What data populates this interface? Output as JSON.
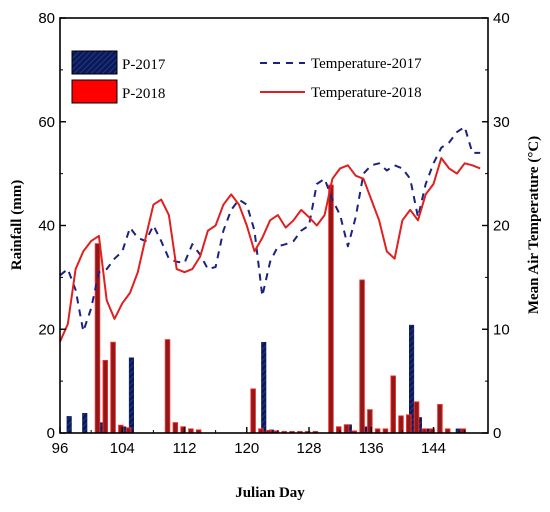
{
  "chart_data": {
    "type": "bar+line",
    "xlabel": "Julian Day",
    "ylabel_left": "Rainfall (mm)",
    "ylabel_right": "Mean Air Temperature (°C)",
    "xlim": [
      96,
      151
    ],
    "ylim_left": [
      0,
      80
    ],
    "ylim_right": [
      0,
      40
    ],
    "x_ticks": [
      96,
      104,
      112,
      120,
      128,
      136,
      144
    ],
    "y_left_ticks": [
      0,
      20,
      40,
      60,
      80
    ],
    "y_right_ticks": [
      0,
      10,
      20,
      30,
      40
    ],
    "legend": {
      "p2017": "P-2017",
      "p2018": "P-2018",
      "t2017": "Temperature-2017",
      "t2018": "Temperature-2018"
    },
    "colors": {
      "p2017_fill": "#0b1a55",
      "p2017_hatch": "#2a3f9f",
      "p2018_fill": "#8b1a1a",
      "p2018_border": "#ff2a2a",
      "t2017": "#1a237e",
      "t2018": "#e02020"
    },
    "bars": {
      "p2017": [
        {
          "x": 97,
          "y": 3.2
        },
        {
          "x": 99,
          "y": 3.8
        },
        {
          "x": 101,
          "y": 2.0
        },
        {
          "x": 104,
          "y": 1.2
        },
        {
          "x": 105,
          "y": 14.5
        },
        {
          "x": 122,
          "y": 17.5
        },
        {
          "x": 123,
          "y": 0.6
        },
        {
          "x": 133,
          "y": 1.6
        },
        {
          "x": 135,
          "y": 1.2
        },
        {
          "x": 141,
          "y": 20.8
        },
        {
          "x": 142,
          "y": 3.0
        },
        {
          "x": 143,
          "y": 0.8
        },
        {
          "x": 147,
          "y": 0.8
        }
      ],
      "p2018": [
        {
          "x": 101,
          "y": 36.5
        },
        {
          "x": 102,
          "y": 14.0
        },
        {
          "x": 103,
          "y": 17.5
        },
        {
          "x": 104,
          "y": 1.5
        },
        {
          "x": 105,
          "y": 1.0
        },
        {
          "x": 110,
          "y": 18.0
        },
        {
          "x": 111,
          "y": 2.0
        },
        {
          "x": 112,
          "y": 1.2
        },
        {
          "x": 113,
          "y": 0.8
        },
        {
          "x": 114,
          "y": 0.6
        },
        {
          "x": 121,
          "y": 8.5
        },
        {
          "x": 122,
          "y": 0.8
        },
        {
          "x": 123,
          "y": 0.5
        },
        {
          "x": 124,
          "y": 0.4
        },
        {
          "x": 125,
          "y": 0.3
        },
        {
          "x": 126,
          "y": 0.3
        },
        {
          "x": 127,
          "y": 0.3
        },
        {
          "x": 128,
          "y": 0.3
        },
        {
          "x": 129,
          "y": 0.3
        },
        {
          "x": 131,
          "y": 47.8
        },
        {
          "x": 132,
          "y": 1.2
        },
        {
          "x": 133,
          "y": 1.6
        },
        {
          "x": 134,
          "y": 0.4
        },
        {
          "x": 135,
          "y": 29.5
        },
        {
          "x": 136,
          "y": 4.5
        },
        {
          "x": 137,
          "y": 0.8
        },
        {
          "x": 138,
          "y": 0.8
        },
        {
          "x": 139,
          "y": 11.0
        },
        {
          "x": 140,
          "y": 3.3
        },
        {
          "x": 141,
          "y": 3.5
        },
        {
          "x": 142,
          "y": 6.0
        },
        {
          "x": 143,
          "y": 0.8
        },
        {
          "x": 144,
          "y": 0.8
        },
        {
          "x": 145,
          "y": 5.5
        },
        {
          "x": 146,
          "y": 0.8
        },
        {
          "x": 148,
          "y": 0.8
        }
      ]
    },
    "temperature_2017": [
      [
        96,
        15.2
      ],
      [
        97,
        15.8
      ],
      [
        98,
        13.8
      ],
      [
        99,
        9.8
      ],
      [
        100,
        12.0
      ],
      [
        101,
        15.5
      ],
      [
        102,
        15.8
      ],
      [
        103,
        16.8
      ],
      [
        104,
        17.5
      ],
      [
        105,
        19.8
      ],
      [
        106,
        18.8
      ],
      [
        107,
        18.5
      ],
      [
        108,
        20.0
      ],
      [
        109,
        18.5
      ],
      [
        110,
        16.8
      ],
      [
        111,
        16.5
      ],
      [
        112,
        16.4
      ],
      [
        113,
        18.2
      ],
      [
        114,
        17.2
      ],
      [
        115,
        15.8
      ],
      [
        116,
        16.0
      ],
      [
        117,
        19.5
      ],
      [
        118,
        21.5
      ],
      [
        119,
        22.5
      ],
      [
        120,
        22.0
      ],
      [
        121,
        19.5
      ],
      [
        122,
        13.2
      ],
      [
        123,
        16.5
      ],
      [
        124,
        18.0
      ],
      [
        125,
        18.2
      ],
      [
        126,
        18.5
      ],
      [
        127,
        19.5
      ],
      [
        128,
        20.0
      ],
      [
        129,
        24.0
      ],
      [
        130,
        24.5
      ],
      [
        131,
        22.5
      ],
      [
        132,
        21.0
      ],
      [
        133,
        18.0
      ],
      [
        134,
        20.8
      ],
      [
        135,
        25.0
      ],
      [
        136,
        25.8
      ],
      [
        137,
        26.0
      ],
      [
        138,
        25.3
      ],
      [
        139,
        25.8
      ],
      [
        140,
        25.5
      ],
      [
        141,
        24.5
      ],
      [
        142,
        20.8
      ],
      [
        143,
        24.0
      ],
      [
        144,
        26.0
      ],
      [
        145,
        27.5
      ],
      [
        146,
        28.0
      ],
      [
        147,
        29.0
      ],
      [
        148,
        29.5
      ],
      [
        149,
        27.0
      ],
      [
        150,
        27.0
      ]
    ],
    "temperature_2018": [
      [
        96,
        8.8
      ],
      [
        97,
        10.5
      ],
      [
        98,
        15.8
      ],
      [
        99,
        17.5
      ],
      [
        100,
        18.5
      ],
      [
        101,
        19.0
      ],
      [
        102,
        12.8
      ],
      [
        103,
        11.0
      ],
      [
        104,
        12.5
      ],
      [
        105,
        13.5
      ],
      [
        106,
        15.5
      ],
      [
        107,
        18.8
      ],
      [
        108,
        22.0
      ],
      [
        109,
        22.5
      ],
      [
        110,
        21.0
      ],
      [
        111,
        15.8
      ],
      [
        112,
        15.5
      ],
      [
        113,
        15.8
      ],
      [
        114,
        17.0
      ],
      [
        115,
        19.5
      ],
      [
        116,
        20.0
      ],
      [
        117,
        22.0
      ],
      [
        118,
        23.0
      ],
      [
        119,
        22.0
      ],
      [
        120,
        20.0
      ],
      [
        121,
        17.5
      ],
      [
        122,
        18.8
      ],
      [
        123,
        20.5
      ],
      [
        124,
        21.0
      ],
      [
        125,
        19.8
      ],
      [
        126,
        20.5
      ],
      [
        127,
        21.5
      ],
      [
        128,
        20.8
      ],
      [
        129,
        20.0
      ],
      [
        130,
        21.0
      ],
      [
        131,
        24.5
      ],
      [
        132,
        25.5
      ],
      [
        133,
        25.8
      ],
      [
        134,
        24.8
      ],
      [
        135,
        24.5
      ],
      [
        136,
        22.5
      ],
      [
        137,
        20.5
      ],
      [
        138,
        17.5
      ],
      [
        139,
        16.8
      ],
      [
        140,
        20.5
      ],
      [
        141,
        21.5
      ],
      [
        142,
        20.5
      ],
      [
        143,
        23.0
      ],
      [
        144,
        24.0
      ],
      [
        145,
        26.5
      ],
      [
        146,
        25.5
      ],
      [
        147,
        25.0
      ],
      [
        148,
        26.0
      ],
      [
        149,
        25.8
      ],
      [
        150,
        25.5
      ]
    ]
  }
}
